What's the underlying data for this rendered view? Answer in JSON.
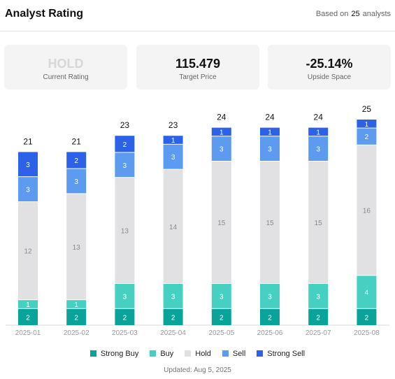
{
  "header": {
    "title": "Analyst Rating",
    "based_prefix": "Based on",
    "based_count": "25",
    "based_suffix": "analysts"
  },
  "cards": [
    {
      "value": "HOLD",
      "label": "Current Rating"
    },
    {
      "value": "115.479",
      "label": "Target Price"
    },
    {
      "value": "-25.14%",
      "label": "Upside Space"
    }
  ],
  "chart_data": {
    "type": "bar",
    "stacked": true,
    "categories": [
      "2025-01",
      "2025-02",
      "2025-03",
      "2025-04",
      "2025-05",
      "2025-06",
      "2025-07",
      "2025-08"
    ],
    "totals": [
      21,
      21,
      23,
      23,
      24,
      24,
      24,
      25
    ],
    "series": [
      {
        "name": "Strong Buy",
        "color": "#0aa39a",
        "label_color": "#ffffff",
        "values": [
          2,
          2,
          2,
          2,
          2,
          2,
          2,
          2
        ]
      },
      {
        "name": "Buy",
        "color": "#45d0c2",
        "label_color": "#ffffff",
        "values": [
          1,
          1,
          3,
          3,
          3,
          3,
          3,
          4
        ]
      },
      {
        "name": "Hold",
        "color": "#e1e1e3",
        "label_color": "#8a8a8a",
        "values": [
          12,
          13,
          13,
          14,
          15,
          15,
          15,
          16
        ]
      },
      {
        "name": "Sell",
        "color": "#5c9bf0",
        "label_color": "#ffffff",
        "values": [
          3,
          3,
          3,
          3,
          3,
          3,
          3,
          2
        ]
      },
      {
        "name": "Strong Sell",
        "color": "#2c62e8",
        "label_color": "#ffffff",
        "values": [
          3,
          2,
          2,
          1,
          1,
          1,
          1,
          1
        ]
      }
    ],
    "legend_position": "bottom"
  },
  "footer": {
    "updated": "Updated: Aug 5, 2025"
  }
}
